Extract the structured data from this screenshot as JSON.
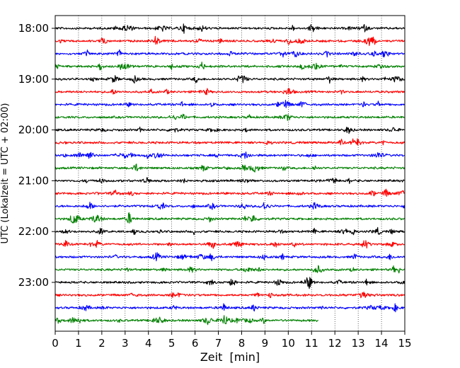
{
  "chart_data": {
    "type": "line",
    "xlabel": "Zeit  [min]",
    "ylabel": "UTC (Lokalzeit = UTC + 02:00)",
    "xlim": [
      0,
      15
    ],
    "x_ticks": [
      "0",
      "1",
      "2",
      "3",
      "4",
      "5",
      "6",
      "7",
      "8",
      "9",
      "10",
      "11",
      "12",
      "13",
      "14",
      "15"
    ],
    "y_tick_labels": [
      "18:00",
      "19:00",
      "20:00",
      "21:00",
      "22:00",
      "23:00"
    ],
    "grid": "vertical-dotted",
    "trace_colors": [
      "#000000",
      "#ff0000",
      "#0000ff",
      "#008000"
    ],
    "series": [
      {
        "start": "18:00",
        "duration_min": 15
      },
      {
        "start": "18:15",
        "duration_min": 15
      },
      {
        "start": "18:30",
        "duration_min": 15
      },
      {
        "start": "18:45",
        "duration_min": 15
      },
      {
        "start": "19:00",
        "duration_min": 15
      },
      {
        "start": "19:15",
        "duration_min": 15
      },
      {
        "start": "19:30",
        "duration_min": 15
      },
      {
        "start": "19:45",
        "duration_min": 15
      },
      {
        "start": "20:00",
        "duration_min": 15
      },
      {
        "start": "20:15",
        "duration_min": 15
      },
      {
        "start": "20:30",
        "duration_min": 15
      },
      {
        "start": "20:45",
        "duration_min": 15
      },
      {
        "start": "21:00",
        "duration_min": 15
      },
      {
        "start": "21:15",
        "duration_min": 15
      },
      {
        "start": "21:30",
        "duration_min": 15
      },
      {
        "start": "21:45",
        "duration_min": 15
      },
      {
        "start": "22:00",
        "duration_min": 15
      },
      {
        "start": "22:15",
        "duration_min": 15
      },
      {
        "start": "22:30",
        "duration_min": 15
      },
      {
        "start": "22:45",
        "duration_min": 15
      },
      {
        "start": "23:00",
        "duration_min": 15
      },
      {
        "start": "23:15",
        "duration_min": 15
      },
      {
        "start": "23:30",
        "duration_min": 15
      },
      {
        "start": "23:45",
        "duration_min": 11.3
      }
    ]
  }
}
